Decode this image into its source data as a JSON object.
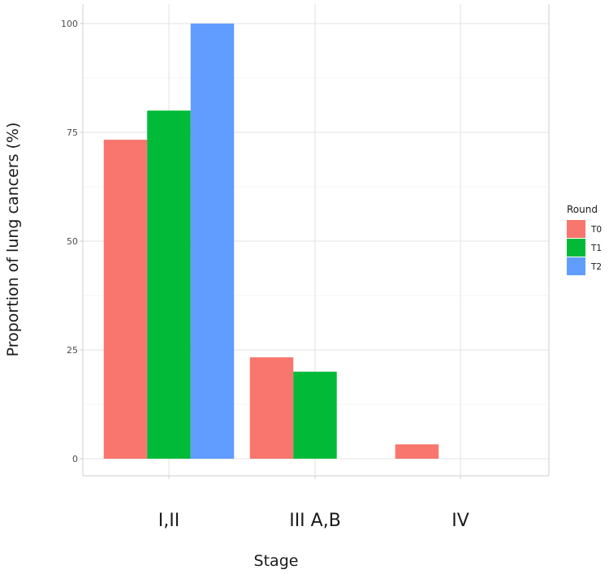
{
  "chart_data": {
    "type": "bar",
    "title": "",
    "xlabel": "Stage",
    "ylabel": "Proportion of lung cancers (%)",
    "categories": [
      "I,II",
      "III A,B",
      "IV"
    ],
    "series": [
      {
        "name": "T0",
        "color": "#F8766D",
        "values": [
          73.3,
          23.3,
          3.3
        ]
      },
      {
        "name": "T1",
        "color": "#00BA38",
        "values": [
          80,
          20,
          0
        ]
      },
      {
        "name": "T2",
        "color": "#619CFF",
        "values": [
          100,
          0,
          0
        ]
      }
    ],
    "ylim": [
      0,
      100
    ],
    "yticks": [
      0,
      25,
      50,
      75,
      100
    ],
    "ytick_labels": [
      "0",
      "25",
      "50",
      "75",
      "100"
    ],
    "grid": true,
    "legend": {
      "title": "Round",
      "position": "right"
    }
  }
}
